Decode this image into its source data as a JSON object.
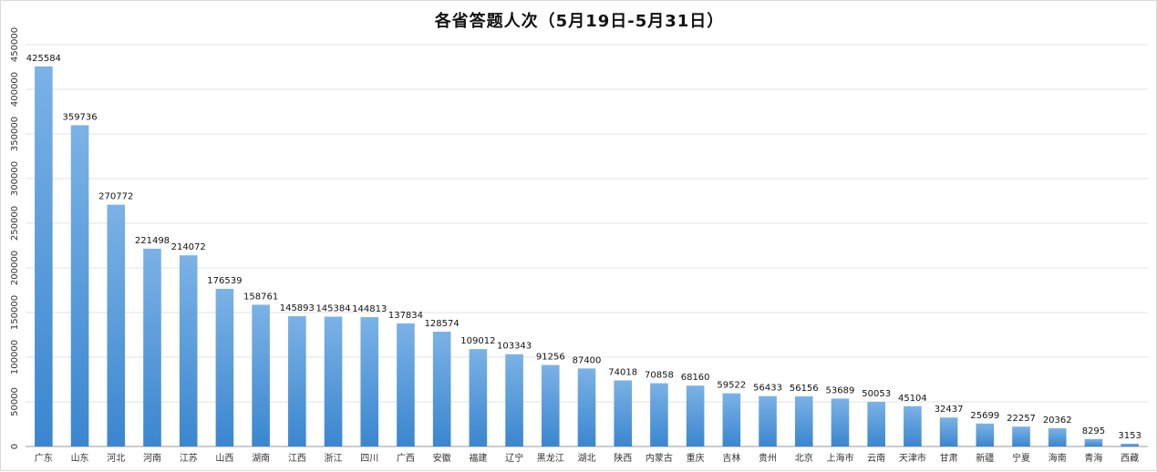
{
  "chart_data": {
    "type": "bar",
    "title": "各省答题人次（5月19日-5月31日）",
    "xlabel": "",
    "ylabel": "",
    "ylim": [
      0,
      450000
    ],
    "yticks": [
      0,
      50000,
      100000,
      150000,
      200000,
      250000,
      300000,
      350000,
      400000,
      450000
    ],
    "grid": true,
    "legend": "none",
    "bar_color_top": "#7bb2e6",
    "bar_color_bottom": "#3a86cf",
    "categories": [
      "广东",
      "山东",
      "河北",
      "河南",
      "江苏",
      "山西",
      "湖南",
      "江西",
      "浙江",
      "四川",
      "广西",
      "安徽",
      "福建",
      "辽宁",
      "黑龙江",
      "湖北",
      "陕西",
      "内蒙古",
      "重庆",
      "吉林",
      "贵州",
      "北京",
      "上海市",
      "云南",
      "天津市",
      "甘肃",
      "新疆",
      "宁夏",
      "海南",
      "青海",
      "西藏"
    ],
    "values": [
      425584,
      359736,
      270772,
      221498,
      214072,
      176539,
      158761,
      145893,
      145384,
      144813,
      137834,
      128574,
      109012,
      103343,
      91256,
      87400,
      74018,
      70858,
      68160,
      59522,
      56433,
      56156,
      53689,
      50053,
      45104,
      32437,
      25699,
      22257,
      20362,
      8295,
      3153
    ]
  }
}
